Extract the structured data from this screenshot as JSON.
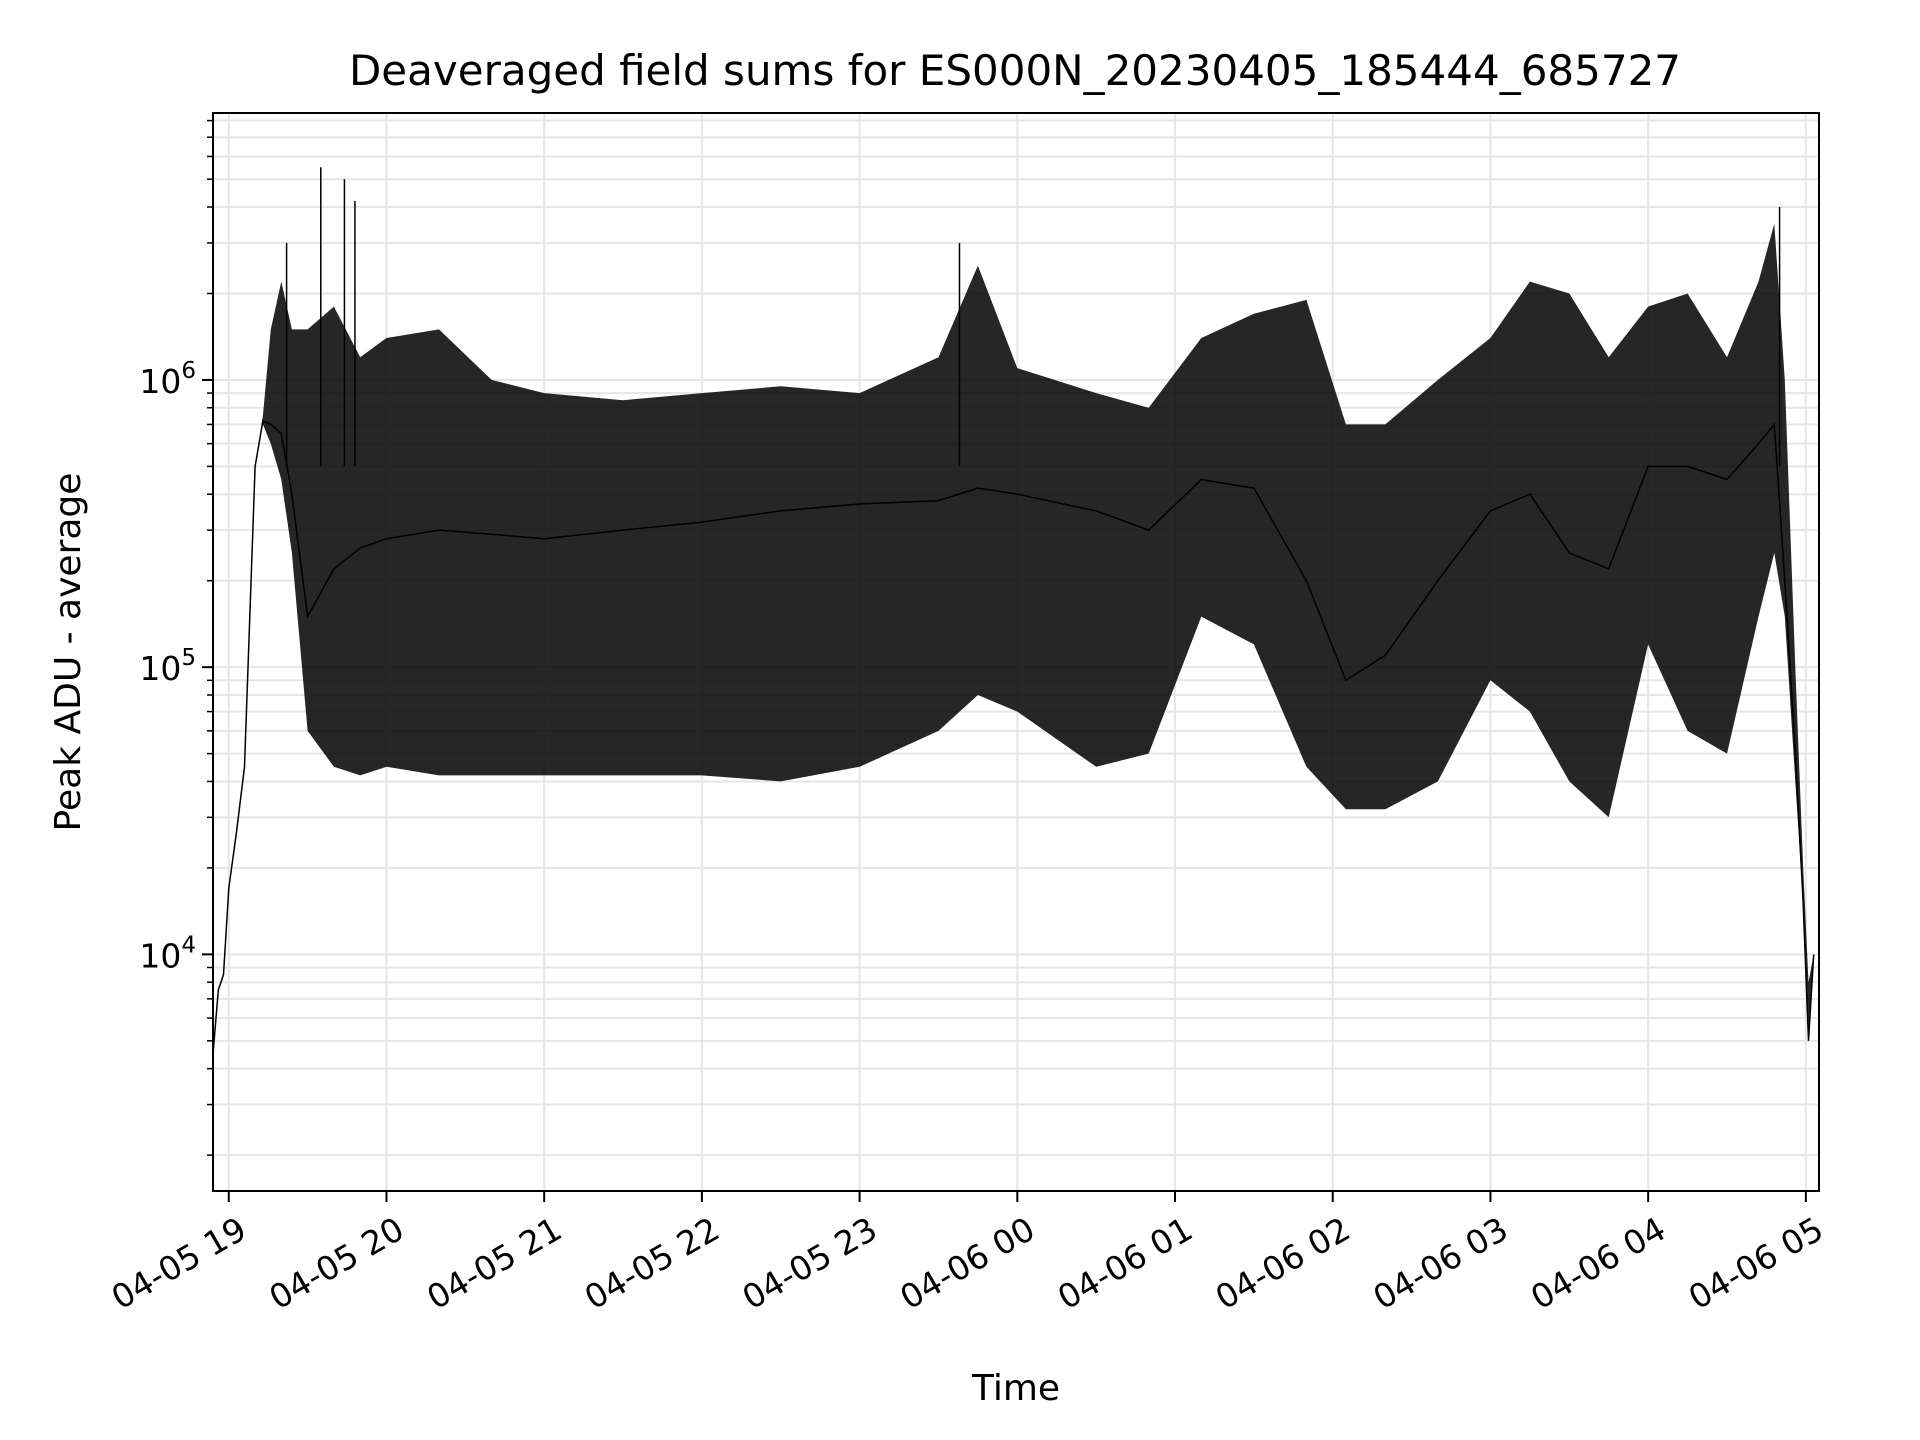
{
  "chart_data": {
    "type": "line",
    "title": "Deaveraged field sums for ES000N_20230405_185444_685727",
    "xlabel": "Time",
    "ylabel": "Peak ADU - average",
    "yscale": "log",
    "ylim": [
      1500,
      8500000
    ],
    "xlim": [
      "2023-04-05 18:54",
      "2023-04-06 05:05"
    ],
    "grid": true,
    "line_color": "#000000",
    "grid_color": "#e6e6e6",
    "x_ticks": [
      {
        "label": "04-05 19",
        "value": "2023-04-05 19:00"
      },
      {
        "label": "04-05 20",
        "value": "2023-04-05 20:00"
      },
      {
        "label": "04-05 21",
        "value": "2023-04-05 21:00"
      },
      {
        "label": "04-05 22",
        "value": "2023-04-05 22:00"
      },
      {
        "label": "04-05 23",
        "value": "2023-04-05 23:00"
      },
      {
        "label": "04-06 00",
        "value": "2023-04-06 00:00"
      },
      {
        "label": "04-06 01",
        "value": "2023-04-06 01:00"
      },
      {
        "label": "04-06 02",
        "value": "2023-04-06 02:00"
      },
      {
        "label": "04-06 03",
        "value": "2023-04-06 03:00"
      },
      {
        "label": "04-06 04",
        "value": "2023-04-06 04:00"
      },
      {
        "label": "04-06 05",
        "value": "2023-04-06 05:00"
      }
    ],
    "y_ticks": [
      {
        "base": "10",
        "exp": "4",
        "value": 10000
      },
      {
        "base": "10",
        "exp": "5",
        "value": 100000
      },
      {
        "base": "10",
        "exp": "6",
        "value": 1000000
      }
    ],
    "x": [
      "2023-04-05 18:54",
      "2023-04-05 18:56",
      "2023-04-05 18:58",
      "2023-04-05 19:00",
      "2023-04-05 19:03",
      "2023-04-05 19:06",
      "2023-04-05 19:08",
      "2023-04-05 19:10",
      "2023-04-05 19:13",
      "2023-04-05 19:16",
      "2023-04-05 19:20",
      "2023-04-05 19:24",
      "2023-04-05 19:30",
      "2023-04-05 19:40",
      "2023-04-05 19:50",
      "2023-04-05 20:00",
      "2023-04-05 20:20",
      "2023-04-05 20:40",
      "2023-04-05 21:00",
      "2023-04-05 21:30",
      "2023-04-05 22:00",
      "2023-04-05 22:30",
      "2023-04-05 23:00",
      "2023-04-05 23:30",
      "2023-04-05 23:45",
      "2023-04-06 00:00",
      "2023-04-06 00:30",
      "2023-04-06 00:50",
      "2023-04-06 01:10",
      "2023-04-06 01:30",
      "2023-04-06 01:50",
      "2023-04-06 02:05",
      "2023-04-06 02:20",
      "2023-04-06 02:40",
      "2023-04-06 03:00",
      "2023-04-06 03:15",
      "2023-04-06 03:30",
      "2023-04-06 03:45",
      "2023-04-06 04:00",
      "2023-04-06 04:15",
      "2023-04-06 04:30",
      "2023-04-06 04:42",
      "2023-04-06 04:48",
      "2023-04-06 04:52",
      "2023-04-06 04:56",
      "2023-04-06 04:59",
      "2023-04-06 05:01",
      "2023-04-06 05:03"
    ],
    "y": [
      4500,
      7500,
      8500,
      17000,
      27000,
      45000,
      150000,
      500000,
      720000,
      700000,
      650000,
      400000,
      150000,
      220000,
      260000,
      280000,
      300000,
      290000,
      280000,
      300000,
      320000,
      350000,
      370000,
      380000,
      420000,
      400000,
      350000,
      300000,
      450000,
      420000,
      200000,
      90000,
      110000,
      200000,
      350000,
      400000,
      250000,
      220000,
      500000,
      500000,
      450000,
      600000,
      700000,
      200000,
      50000,
      15000,
      5000,
      10000
    ],
    "y_upper": [
      4500,
      7500,
      8500,
      17000,
      27000,
      45000,
      150000,
      500000,
      750000,
      1500000,
      2200000,
      1500000,
      1500000,
      1800000,
      1200000,
      1400000,
      1500000,
      1000000,
      900000,
      850000,
      900000,
      950000,
      900000,
      1200000,
      2500000,
      1100000,
      900000,
      800000,
      1400000,
      1700000,
      1900000,
      700000,
      700000,
      1000000,
      1400000,
      2200000,
      2000000,
      1200000,
      1800000,
      2000000,
      1200000,
      2200000,
      3500000,
      1000000,
      100000,
      20000,
      8000,
      10000
    ],
    "y_lower": [
      4500,
      7500,
      8500,
      17000,
      27000,
      45000,
      150000,
      500000,
      700000,
      600000,
      450000,
      250000,
      60000,
      45000,
      42000,
      45000,
      42000,
      42000,
      42000,
      42000,
      42000,
      40000,
      45000,
      60000,
      80000,
      70000,
      45000,
      50000,
      150000,
      120000,
      45000,
      32000,
      32000,
      40000,
      90000,
      70000,
      40000,
      30000,
      120000,
      60000,
      50000,
      150000,
      250000,
      150000,
      40000,
      15000,
      5000,
      10000
    ],
    "spikes": [
      {
        "x": "2023-04-05 19:35",
        "y": 5500000
      },
      {
        "x": "2023-04-05 19:44",
        "y": 5000000
      },
      {
        "x": "2023-04-05 19:48",
        "y": 4200000
      },
      {
        "x": "2023-04-05 19:22",
        "y": 3000000
      },
      {
        "x": "2023-04-05 23:38",
        "y": 3000000
      },
      {
        "x": "2023-04-06 04:50",
        "y": 4000000
      }
    ]
  }
}
